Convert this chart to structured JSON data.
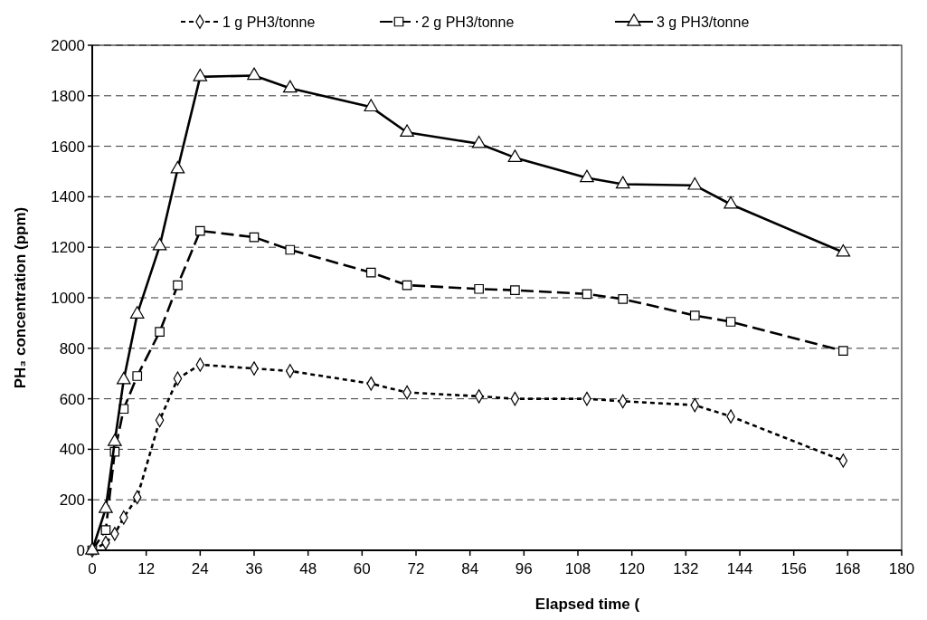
{
  "chart_data": {
    "type": "line",
    "xlabel": "Elapsed time (",
    "ylabel": "PH₃ concentration (ppm)",
    "xlim": [
      0,
      180
    ],
    "xticks": [
      0,
      12,
      24,
      36,
      48,
      60,
      72,
      84,
      96,
      108,
      120,
      132,
      144,
      156,
      168,
      180
    ],
    "ylim": [
      0,
      2000
    ],
    "yticks": [
      0,
      200,
      400,
      600,
      800,
      1000,
      1200,
      1400,
      1600,
      1800,
      2000
    ],
    "grid": "y",
    "legend": "top",
    "x": [
      0,
      3,
      5,
      7,
      10,
      15,
      19,
      24,
      36,
      44,
      62,
      70,
      86,
      94,
      110,
      118,
      134,
      142,
      167
    ],
    "series": [
      {
        "name": "1 g PH3/tonne",
        "color": "#000000",
        "marker": "diamond",
        "line_style": "dotted",
        "values": [
          0,
          30,
          65,
          130,
          210,
          515,
          680,
          735,
          720,
          710,
          660,
          625,
          610,
          600,
          600,
          590,
          575,
          530,
          355
        ]
      },
      {
        "name": "2 g PH3/tonne",
        "color": "#000000",
        "marker": "square",
        "line_style": "dashed",
        "values": [
          0,
          80,
          390,
          560,
          690,
          865,
          1050,
          1265,
          1240,
          1190,
          1100,
          1050,
          1035,
          1030,
          1015,
          995,
          930,
          905,
          790
        ]
      },
      {
        "name": "3 g PH3/tonne",
        "color": "#000000",
        "marker": "triangle",
        "line_style": "solid",
        "values": [
          0,
          165,
          430,
          675,
          935,
          1205,
          1510,
          1875,
          1880,
          1830,
          1755,
          1655,
          1610,
          1555,
          1475,
          1450,
          1445,
          1370,
          1180
        ]
      }
    ]
  }
}
